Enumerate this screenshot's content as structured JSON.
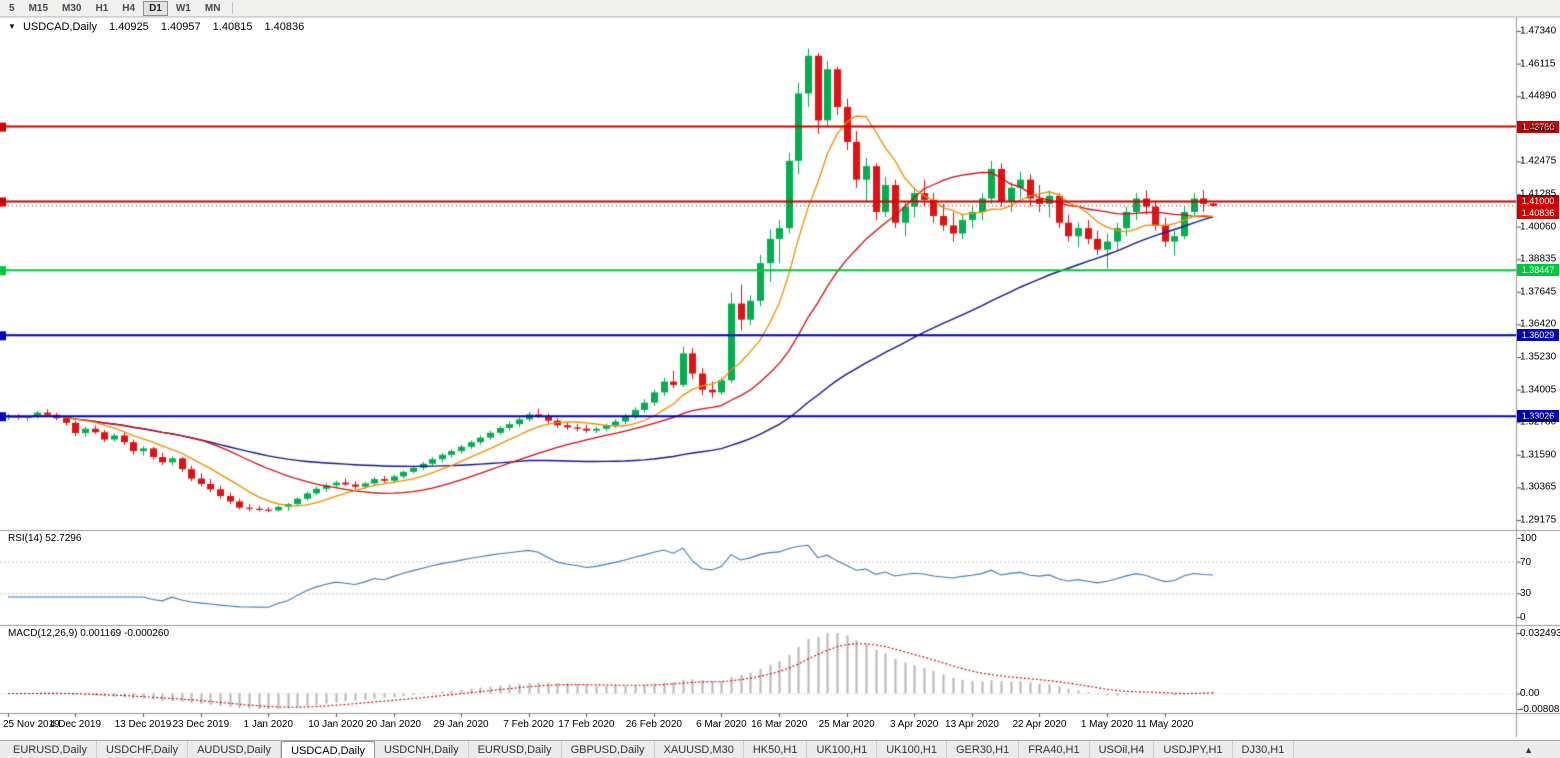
{
  "toolbar": {
    "timeframes": [
      "5",
      "M15",
      "M30",
      "H1",
      "H4",
      "D1",
      "W1",
      "MN"
    ],
    "active": "D1"
  },
  "chart_data": {
    "type": "candlestick",
    "title": {
      "dropdown_icon": "▼",
      "symbol": "USDCAD,Daily",
      "open": "1.40925",
      "high": "1.40957",
      "low": "1.40815",
      "close": "1.40836"
    },
    "y_axis_labels": [
      "1.47340",
      "1.46115",
      "1.44890",
      "1.43665",
      "1.42475",
      "1.41285",
      "1.40060",
      "1.38835",
      "1.37645",
      "1.36420",
      "1.35230",
      "1.34005",
      "1.32780",
      "1.31590",
      "1.30365",
      "1.29175"
    ],
    "x_labels": [
      {
        "i": 0,
        "t": "25 Nov 2019"
      },
      {
        "i": 7,
        "t": "4 Dec 2019"
      },
      {
        "i": 14,
        "t": "13 Dec 2019"
      },
      {
        "i": 20,
        "t": "23 Dec 2019"
      },
      {
        "i": 27,
        "t": "1 Jan 2020"
      },
      {
        "i": 34,
        "t": "10 Jan 2020"
      },
      {
        "i": 40,
        "t": "20 Jan 2020"
      },
      {
        "i": 47,
        "t": "29 Jan 2020"
      },
      {
        "i": 54,
        "t": "7 Feb 2020"
      },
      {
        "i": 60,
        "t": "17 Feb 2020"
      },
      {
        "i": 67,
        "t": "26 Feb 2020"
      },
      {
        "i": 74,
        "t": "6 Mar 2020"
      },
      {
        "i": 80,
        "t": "16 Mar 2020"
      },
      {
        "i": 87,
        "t": "25 Mar 2020"
      },
      {
        "i": 94,
        "t": "3 Apr 2020"
      },
      {
        "i": 100,
        "t": "13 Apr 2020"
      },
      {
        "i": 107,
        "t": "22 Apr 2020"
      },
      {
        "i": 114,
        "t": "1 May 2020"
      },
      {
        "i": 120,
        "t": "11 May 2020"
      }
    ],
    "ohlc": [
      [
        1.3298,
        1.3312,
        1.3288,
        1.3302
      ],
      [
        1.3302,
        1.3311,
        1.329,
        1.3296
      ],
      [
        1.3296,
        1.3306,
        1.3285,
        1.33
      ],
      [
        1.33,
        1.3322,
        1.3294,
        1.3316
      ],
      [
        1.3316,
        1.3328,
        1.3302,
        1.3308
      ],
      [
        1.3308,
        1.3316,
        1.3288,
        1.3295
      ],
      [
        1.3295,
        1.3305,
        1.3268,
        1.3278
      ],
      [
        1.3278,
        1.3286,
        1.3228,
        1.324
      ],
      [
        1.324,
        1.3263,
        1.3226,
        1.3256
      ],
      [
        1.3256,
        1.3268,
        1.3236,
        1.3243
      ],
      [
        1.3243,
        1.3252,
        1.3206,
        1.3216
      ],
      [
        1.3216,
        1.3239,
        1.3208,
        1.3231
      ],
      [
        1.3231,
        1.3243,
        1.3196,
        1.3206
      ],
      [
        1.3206,
        1.3216,
        1.316,
        1.3173
      ],
      [
        1.3173,
        1.3191,
        1.3156,
        1.3183
      ],
      [
        1.3183,
        1.3189,
        1.3141,
        1.3151
      ],
      [
        1.3151,
        1.3166,
        1.3121,
        1.3131
      ],
      [
        1.3131,
        1.3153,
        1.3119,
        1.3146
      ],
      [
        1.3146,
        1.3151,
        1.3096,
        1.3106
      ],
      [
        1.3106,
        1.3119,
        1.3061,
        1.3071
      ],
      [
        1.3071,
        1.3091,
        1.3041,
        1.3051
      ],
      [
        1.3051,
        1.3069,
        1.3021,
        1.3031
      ],
      [
        1.3031,
        1.3043,
        1.2996,
        1.3006
      ],
      [
        1.3006,
        1.3019,
        1.2976,
        1.2986
      ],
      [
        1.2986,
        1.2996,
        1.2956,
        1.2963
      ],
      [
        1.2963,
        1.2976,
        1.2951,
        1.2959
      ],
      [
        1.2959,
        1.2969,
        1.2949,
        1.2956
      ],
      [
        1.2956,
        1.2966,
        1.2946,
        1.2953
      ],
      [
        1.2953,
        1.2971,
        1.2948,
        1.2966
      ],
      [
        1.2966,
        1.2981,
        1.2951,
        1.2976
      ],
      [
        1.2976,
        1.3001,
        1.2969,
        1.2996
      ],
      [
        1.2996,
        1.3023,
        1.2989,
        1.3016
      ],
      [
        1.3016,
        1.3041,
        1.3009,
        1.3033
      ],
      [
        1.3033,
        1.3053,
        1.3021,
        1.3046
      ],
      [
        1.3046,
        1.3063,
        1.3036,
        1.3056
      ],
      [
        1.3056,
        1.3071,
        1.3043,
        1.3049
      ],
      [
        1.3049,
        1.3061,
        1.3031,
        1.3041
      ],
      [
        1.3041,
        1.3059,
        1.3033,
        1.3053
      ],
      [
        1.3053,
        1.3076,
        1.3046,
        1.3069
      ],
      [
        1.3069,
        1.3081,
        1.3056,
        1.3063
      ],
      [
        1.3063,
        1.3086,
        1.3056,
        1.3079
      ],
      [
        1.3079,
        1.3101,
        1.3071,
        1.3096
      ],
      [
        1.3096,
        1.3119,
        1.3089,
        1.3111
      ],
      [
        1.3111,
        1.3133,
        1.3101,
        1.3126
      ],
      [
        1.3126,
        1.3151,
        1.3119,
        1.3143
      ],
      [
        1.3143,
        1.3166,
        1.3131,
        1.3159
      ],
      [
        1.3159,
        1.3181,
        1.3149,
        1.3173
      ],
      [
        1.3173,
        1.3196,
        1.3163,
        1.3189
      ],
      [
        1.3189,
        1.3213,
        1.3181,
        1.3206
      ],
      [
        1.3206,
        1.3231,
        1.3196,
        1.3223
      ],
      [
        1.3223,
        1.3249,
        1.3216,
        1.3241
      ],
      [
        1.3241,
        1.3266,
        1.3233,
        1.3259
      ],
      [
        1.3259,
        1.3283,
        1.3249,
        1.3273
      ],
      [
        1.3273,
        1.3299,
        1.3263,
        1.3291
      ],
      [
        1.3291,
        1.3319,
        1.3283,
        1.3309
      ],
      [
        1.3309,
        1.3331,
        1.3296,
        1.3303
      ],
      [
        1.3303,
        1.3313,
        1.3276,
        1.3286
      ],
      [
        1.3286,
        1.3296,
        1.3259,
        1.3269
      ],
      [
        1.3269,
        1.3283,
        1.3251,
        1.3261
      ],
      [
        1.3261,
        1.3273,
        1.3246,
        1.3256
      ],
      [
        1.3256,
        1.3271,
        1.3241,
        1.3249
      ],
      [
        1.3249,
        1.3263,
        1.3239,
        1.3256
      ],
      [
        1.3256,
        1.3276,
        1.3246,
        1.3269
      ],
      [
        1.3269,
        1.3291,
        1.3259,
        1.3283
      ],
      [
        1.3283,
        1.3311,
        1.3273,
        1.3301
      ],
      [
        1.3301,
        1.3336,
        1.3291,
        1.3326
      ],
      [
        1.3326,
        1.3366,
        1.3316,
        1.3353
      ],
      [
        1.3353,
        1.3401,
        1.3341,
        1.3391
      ],
      [
        1.3391,
        1.3446,
        1.3379,
        1.3431
      ],
      [
        1.3431,
        1.3471,
        1.3406,
        1.3419
      ],
      [
        1.3419,
        1.3561,
        1.3411,
        1.3536
      ],
      [
        1.3536,
        1.3556,
        1.3441,
        1.3461
      ],
      [
        1.3461,
        1.3481,
        1.3381,
        1.3401
      ],
      [
        1.3401,
        1.3431,
        1.3371,
        1.3391
      ],
      [
        1.3391,
        1.3446,
        1.3381,
        1.3436
      ],
      [
        1.3436,
        1.3761,
        1.3426,
        1.3721
      ],
      [
        1.3721,
        1.3791,
        1.3621,
        1.3661
      ],
      [
        1.3661,
        1.3751,
        1.3641,
        1.3731
      ],
      [
        1.3731,
        1.3901,
        1.3711,
        1.3871
      ],
      [
        1.3871,
        1.3996,
        1.3801,
        1.3961
      ],
      [
        1.3961,
        1.4031,
        1.3871,
        1.4001
      ],
      [
        1.4001,
        1.4281,
        1.3981,
        1.4251
      ],
      [
        1.4251,
        1.4541,
        1.4201,
        1.4501
      ],
      [
        1.4501,
        1.4668,
        1.4451,
        1.4641
      ],
      [
        1.4641,
        1.4651,
        1.4351,
        1.4401
      ],
      [
        1.4401,
        1.4621,
        1.4381,
        1.4591
      ],
      [
        1.4591,
        1.4601,
        1.4421,
        1.4451
      ],
      [
        1.4451,
        1.4481,
        1.4291,
        1.4321
      ],
      [
        1.4321,
        1.4361,
        1.4151,
        1.4181
      ],
      [
        1.4181,
        1.4261,
        1.4101,
        1.4231
      ],
      [
        1.4231,
        1.4241,
        1.4031,
        1.4061
      ],
      [
        1.4061,
        1.4191,
        1.4041,
        1.4161
      ],
      [
        1.4161,
        1.4181,
        1.4001,
        1.4021
      ],
      [
        1.4021,
        1.4101,
        1.3971,
        1.4081
      ],
      [
        1.4081,
        1.4151,
        1.4041,
        1.4131
      ],
      [
        1.4131,
        1.4181,
        1.4081,
        1.4106
      ],
      [
        1.4106,
        1.4131,
        1.4021,
        1.4046
      ],
      [
        1.4046,
        1.4091,
        1.3991,
        1.4011
      ],
      [
        1.4011,
        1.4061,
        1.3951,
        1.3981
      ],
      [
        1.3981,
        1.4051,
        1.3961,
        1.4031
      ],
      [
        1.4031,
        1.4081,
        1.4001,
        1.4061
      ],
      [
        1.4061,
        1.4131,
        1.4031,
        1.4111
      ],
      [
        1.4111,
        1.4251,
        1.4091,
        1.4221
      ],
      [
        1.4221,
        1.4241,
        1.4081,
        1.4101
      ],
      [
        1.4101,
        1.4171,
        1.4061,
        1.4151
      ],
      [
        1.4151,
        1.4211,
        1.4111,
        1.4181
      ],
      [
        1.4181,
        1.4201,
        1.4081,
        1.4111
      ],
      [
        1.4111,
        1.4161,
        1.4061,
        1.4091
      ],
      [
        1.4091,
        1.4141,
        1.4041,
        1.4121
      ],
      [
        1.4121,
        1.4131,
        1.4001,
        1.4021
      ],
      [
        1.4021,
        1.4051,
        1.3951,
        1.3971
      ],
      [
        1.3971,
        1.4021,
        1.3931,
        1.4001
      ],
      [
        1.4001,
        1.4031,
        1.3941,
        1.3961
      ],
      [
        1.3961,
        1.3991,
        1.3901,
        1.3921
      ],
      [
        1.3921,
        1.3981,
        1.3851,
        1.3951
      ],
      [
        1.3951,
        1.4021,
        1.3921,
        1.4001
      ],
      [
        1.4001,
        1.4081,
        1.3971,
        1.4061
      ],
      [
        1.4061,
        1.4131,
        1.4031,
        1.4111
      ],
      [
        1.4111,
        1.4141,
        1.4051,
        1.4081
      ],
      [
        1.4081,
        1.4101,
        1.3991,
        1.4011
      ],
      [
        1.4011,
        1.4041,
        1.3931,
        1.3951
      ],
      [
        1.3951,
        1.3991,
        1.3901,
        1.3971
      ],
      [
        1.3971,
        1.4081,
        1.3961,
        1.4061
      ],
      [
        1.4061,
        1.4131,
        1.4041,
        1.4111
      ],
      [
        1.4111,
        1.4141,
        1.4061,
        1.4091
      ],
      [
        1.40925,
        1.40957,
        1.40815,
        1.40836
      ]
    ],
    "colors": {
      "bull": "#00B050",
      "bear": "#E01212",
      "ma_fast": "#F09000",
      "ma_mid": "#CC1010",
      "ma_slow": "#16168C",
      "rsi": "#3E7CB8",
      "macd_hist": "#B6B6B6",
      "macd_signal": "#CC0000"
    },
    "ma_periods": {
      "fast": 8,
      "mid": 21,
      "slow": 55
    },
    "hlines": [
      {
        "price": 1.4378,
        "label": "1.43780",
        "color": "#CC0000"
      },
      {
        "price": 1.41,
        "label": "1.41000",
        "color": "#CC0000"
      },
      {
        "price": 1.38447,
        "label": "1.38447",
        "color": "#00C83C"
      },
      {
        "price": 1.36029,
        "label": "1.36029",
        "color": "#0000B8"
      },
      {
        "price": 1.33026,
        "label": "1.33026",
        "color": "#0000B8"
      }
    ],
    "current_price": {
      "price": 1.40836,
      "label": "1.40836",
      "color": "#CC0000"
    },
    "rsi": {
      "label": "RSI(14) 52.7296",
      "period": 14,
      "scale": [
        "100",
        "70",
        "30",
        "0"
      ],
      "levels": [
        70,
        30
      ]
    },
    "macd": {
      "label": "MACD(12,26,9) 0.001169 -0.000260",
      "fast": 12,
      "slow": 26,
      "signal": 9,
      "scale_top": "0.032493",
      "scale_zero": "0.00",
      "scale_bottom": "-0.00808"
    }
  },
  "tabbar": {
    "tabs": [
      "EURUSD,Daily",
      "USDCHF,Daily",
      "AUDUSD,Daily",
      "USDCAD,Daily",
      "USDCNH,Daily",
      "EURUSD,Daily",
      "GBPUSD,Daily",
      "XAUUSD,M30",
      "HK50,H1",
      "UK100,H1",
      "UK100,H1",
      "GER30,H1",
      "FRA40,H1",
      "USOil,H4",
      "USDJPY,H1",
      "DJ30,H1"
    ],
    "active_index": 3,
    "list_button": "▲"
  }
}
